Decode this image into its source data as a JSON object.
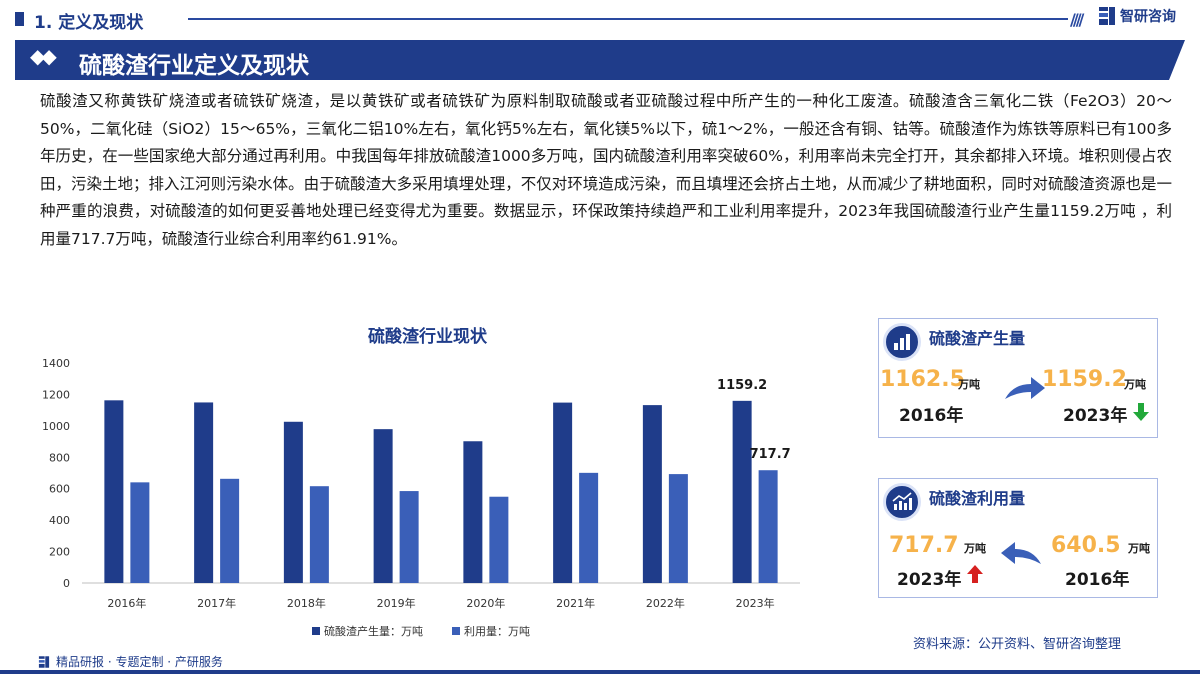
{
  "header": {
    "section_title": "1. 定义及现状",
    "brand_name": "智研咨询"
  },
  "banner": {
    "title": "硫酸渣行业定义及现状"
  },
  "paragraph": "硫酸渣又称黄铁矿烧渣或者硫铁矿烧渣，是以黄铁矿或者硫铁矿为原料制取硫酸或者亚硫酸过程中所产生的一种化工废渣。硫酸渣含三氧化二铁（Fe2O3）20～50%，二氧化硅（SiO2）15～65%，三氧化二铝10%左右，氧化钙5%左右，氧化镁5%以下，硫1～2%，一般还含有铜、钴等。硫酸渣作为炼铁等原料已有100多年历史，在一些国家绝大部分通过再利用。中我国每年排放硫酸渣1000多万吨，国内硫酸渣利用率突破60%，利用率尚未完全打开，其余都排入环境。堆积则侵占农田，污染土地；排入江河则污染水体。由于硫酸渣大多采用填埋处理，不仅对环境造成污染，而且填埋还会挤占土地，从而减少了耕地面积，同时对硫酸渣资源也是一种严重的浪费，对硫酸渣的如何更妥善地处理已经变得尤为重要。数据显示，环保政策持续趋严和工业利用率提升，2023年我国硫酸渣行业产生量1159.2万吨 ，利用量717.7万吨，硫酸渣行业综合利用率约61.91%。",
  "chart_data": {
    "type": "bar",
    "title": "硫酸渣行业现状",
    "categories": [
      "2016年",
      "2017年",
      "2018年",
      "2019年",
      "2020年",
      "2021年",
      "2022年",
      "2023年"
    ],
    "series": [
      {
        "name": "硫酸渣产生量：万吨",
        "values": [
          1162.5,
          1149,
          1026,
          979,
          902,
          1148,
          1132,
          1159.2
        ],
        "color": "#1f3c8a"
      },
      {
        "name": "利用量：万吨",
        "values": [
          640.5,
          663,
          616,
          585,
          549,
          701,
          693,
          717.7
        ],
        "color": "#3a5fb8"
      }
    ],
    "data_labels": [
      {
        "series": 0,
        "index": 7,
        "text": "1159.2"
      },
      {
        "series": 1,
        "index": 7,
        "text": "717.7"
      }
    ],
    "yticks": [
      "0",
      "200",
      "400",
      "600",
      "800",
      "1000",
      "1200",
      "1400"
    ],
    "ylim": [
      0,
      1400
    ],
    "grid": false,
    "legend_position": "bottom"
  },
  "cards": {
    "production": {
      "title": "硫酸渣产生量",
      "icon": "bar-chart-icon",
      "left_value": "1162.5",
      "left_unit": "万吨",
      "left_year": "2016年",
      "right_value": "1159.2",
      "right_unit": "万吨",
      "right_year": "2023年",
      "trend": "down",
      "trend_color": "#22a83a"
    },
    "utilization": {
      "title": "硫酸渣利用量",
      "icon": "trend-up-chart-icon",
      "left_value": "717.7",
      "left_unit": "万吨",
      "left_year": "2023年",
      "right_value": "640.5",
      "right_unit": "万吨",
      "right_year": "2016年",
      "trend": "up",
      "trend_color": "#d6201f"
    }
  },
  "footer": {
    "left_text": "精品研报 · 专题定制 · 产研服务",
    "source": "资料来源：公开资料、智研咨询整理"
  },
  "colors": {
    "primary": "#1f3c8a",
    "secondary": "#3a5fb8",
    "accent_number": "#f6b24a"
  }
}
